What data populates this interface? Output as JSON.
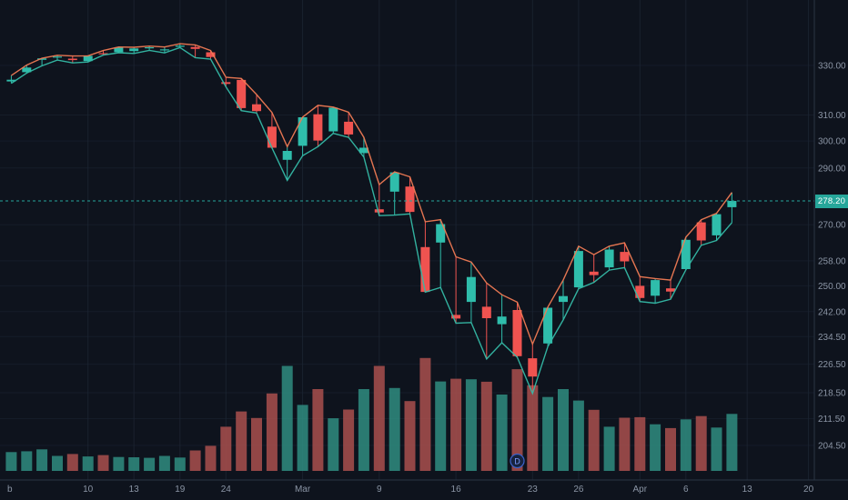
{
  "price_axis": {
    "current_price": "278.20",
    "current_price_color": "#26a69a"
  },
  "chart_data": {
    "type": "candlestick",
    "colors": {
      "up": "#2fbdab",
      "down": "#ef5350",
      "volume_up": "#2f8d80",
      "volume_down": "#a9504e",
      "high_line": "#f07a54",
      "low_line": "#35b9a6",
      "current_price_line": "#26a69a",
      "background": "#0e131d",
      "grid": "#1c2533",
      "axis_text": "#8b95a5"
    },
    "y_axis": {
      "scale": "log",
      "ticks": [
        {
          "label": "330.00",
          "value": 330
        },
        {
          "label": "310.00",
          "value": 310
        },
        {
          "label": "300.00",
          "value": 300
        },
        {
          "label": "290.00",
          "value": 290
        },
        {
          "label": "270.00",
          "value": 270
        },
        {
          "label": "258.00",
          "value": 258
        },
        {
          "label": "250.00",
          "value": 250
        },
        {
          "label": "242.00",
          "value": 242
        },
        {
          "label": "234.50",
          "value": 234.5
        },
        {
          "label": "226.50",
          "value": 226.5
        },
        {
          "label": "218.50",
          "value": 218.5
        },
        {
          "label": "211.50",
          "value": 211.5
        },
        {
          "label": "204.50",
          "value": 204.5
        }
      ]
    },
    "x_axis": {
      "labels": [
        {
          "index": 0,
          "label": "b"
        },
        {
          "index": 5,
          "label": "10"
        },
        {
          "index": 8,
          "label": "13"
        },
        {
          "index": 11,
          "label": "19"
        },
        {
          "index": 14,
          "label": "24"
        },
        {
          "index": 19,
          "label": "Mar"
        },
        {
          "index": 24,
          "label": "9"
        },
        {
          "index": 29,
          "label": "16"
        },
        {
          "index": 34,
          "label": "23"
        },
        {
          "index": 37,
          "label": "26"
        },
        {
          "index": 41,
          "label": "Apr"
        },
        {
          "index": 44,
          "label": "6"
        },
        {
          "index": 48,
          "label": "13"
        },
        {
          "index": 52,
          "label": "20"
        }
      ]
    },
    "current_price": 278.2,
    "markers": [
      {
        "type": "dividend",
        "label": "D",
        "index": 33
      }
    ],
    "overlays": [
      {
        "name": "high-line",
        "source": "high",
        "color": "#f07a54"
      },
      {
        "name": "low-line",
        "source": "low",
        "color": "#35b9a6"
      }
    ],
    "candles": [
      {
        "date": "Feb 3",
        "o": 323.4,
        "h": 325.8,
        "l": 322.6,
        "c": 324.1,
        "v": 69
      },
      {
        "date": "Feb 4",
        "o": 327.2,
        "h": 330.1,
        "l": 326.8,
        "c": 329.1,
        "v": 72
      },
      {
        "date": "Feb 5",
        "o": 332.3,
        "h": 333.0,
        "l": 329.8,
        "c": 332.9,
        "v": 79
      },
      {
        "date": "Feb 6",
        "o": 333.4,
        "h": 334.2,
        "l": 332.2,
        "c": 333.7,
        "v": 55
      },
      {
        "date": "Feb 7",
        "o": 332.8,
        "h": 333.9,
        "l": 331.0,
        "c": 332.2,
        "v": 62
      },
      {
        "date": "Feb 10",
        "o": 331.8,
        "h": 334.0,
        "l": 331.4,
        "c": 334.0,
        "v": 53
      },
      {
        "date": "Feb 11",
        "o": 335.1,
        "h": 336.2,
        "l": 334.3,
        "c": 334.7,
        "v": 58
      },
      {
        "date": "Feb 12",
        "o": 335.5,
        "h": 337.7,
        "l": 335.3,
        "c": 337.4,
        "v": 51
      },
      {
        "date": "Feb 13",
        "o": 336.0,
        "h": 337.6,
        "l": 335.0,
        "c": 337.1,
        "v": 50
      },
      {
        "date": "Feb 14",
        "o": 337.5,
        "h": 338.1,
        "l": 336.3,
        "c": 337.6,
        "v": 48
      },
      {
        "date": "Feb 18",
        "o": 336.6,
        "h": 337.7,
        "l": 335.2,
        "c": 336.7,
        "v": 55
      },
      {
        "date": "Feb 19",
        "o": 337.8,
        "h": 339.1,
        "l": 337.5,
        "c": 338.3,
        "v": 49
      },
      {
        "date": "Feb 20",
        "o": 337.7,
        "h": 338.6,
        "l": 333.2,
        "c": 336.9,
        "v": 75
      },
      {
        "date": "Feb 21",
        "o": 335.5,
        "h": 336.2,
        "l": 332.6,
        "c": 333.5,
        "v": 92
      },
      {
        "date": "Feb 24",
        "o": 323.1,
        "h": 325.1,
        "l": 321.2,
        "c": 322.4,
        "v": 162
      },
      {
        "date": "Feb 25",
        "o": 324.0,
        "h": 324.6,
        "l": 311.7,
        "c": 312.7,
        "v": 218
      },
      {
        "date": "Feb 26",
        "o": 314.2,
        "h": 318.1,
        "l": 310.8,
        "c": 311.5,
        "v": 194
      },
      {
        "date": "Feb 27",
        "o": 305.5,
        "h": 311.0,
        "l": 297.4,
        "c": 297.5,
        "v": 284
      },
      {
        "date": "Feb 28",
        "o": 293.0,
        "h": 297.9,
        "l": 285.5,
        "c": 296.3,
        "v": 385
      },
      {
        "date": "Mar 2",
        "o": 298.2,
        "h": 309.2,
        "l": 294.5,
        "c": 309.1,
        "v": 242
      },
      {
        "date": "Mar 3",
        "o": 310.3,
        "h": 313.8,
        "l": 297.9,
        "c": 300.2,
        "v": 300
      },
      {
        "date": "Mar 4",
        "o": 303.7,
        "h": 313.1,
        "l": 302.9,
        "c": 312.9,
        "v": 193
      },
      {
        "date": "Mar 5",
        "o": 307.4,
        "h": 311.1,
        "l": 301.4,
        "c": 302.5,
        "v": 225
      },
      {
        "date": "Mar 6",
        "o": 295.5,
        "h": 301.4,
        "l": 294.0,
        "c": 297.5,
        "v": 300
      },
      {
        "date": "Mar 9",
        "o": 275.3,
        "h": 284.0,
        "l": 273.1,
        "c": 274.2,
        "v": 385
      },
      {
        "date": "Mar 10",
        "o": 281.5,
        "h": 288.6,
        "l": 273.3,
        "c": 288.4,
        "v": 304
      },
      {
        "date": "Mar 11",
        "o": 283.3,
        "h": 286.8,
        "l": 273.7,
        "c": 274.4,
        "v": 256
      },
      {
        "date": "Mar 12",
        "o": 262.5,
        "h": 271.0,
        "l": 248.0,
        "c": 248.1,
        "v": 414
      },
      {
        "date": "Mar 13",
        "o": 264.0,
        "h": 271.7,
        "l": 249.5,
        "c": 270.2,
        "v": 328
      },
      {
        "date": "Mar 16",
        "o": 241.0,
        "h": 259.3,
        "l": 238.5,
        "c": 239.9,
        "v": 338
      },
      {
        "date": "Mar 17",
        "o": 245.0,
        "h": 257.6,
        "l": 238.7,
        "c": 252.8,
        "v": 336
      },
      {
        "date": "Mar 18",
        "o": 243.5,
        "h": 250.9,
        "l": 228.0,
        "c": 240.0,
        "v": 327
      },
      {
        "date": "Mar 19",
        "o": 238.2,
        "h": 247.2,
        "l": 232.7,
        "c": 240.5,
        "v": 280
      },
      {
        "date": "Mar 20",
        "o": 242.5,
        "h": 244.9,
        "l": 228.5,
        "c": 228.8,
        "v": 373
      },
      {
        "date": "Mar 23",
        "o": 228.2,
        "h": 232.3,
        "l": 218.3,
        "c": 223.0,
        "v": 314
      },
      {
        "date": "Mar 24",
        "o": 232.5,
        "h": 243.4,
        "l": 231.6,
        "c": 243.2,
        "v": 271
      },
      {
        "date": "Mar 25",
        "o": 245.0,
        "h": 251.8,
        "l": 239.5,
        "c": 246.8,
        "v": 300
      },
      {
        "date": "Mar 26",
        "o": 249.5,
        "h": 262.8,
        "l": 249.1,
        "c": 261.2,
        "v": 258
      },
      {
        "date": "Mar 27",
        "o": 254.5,
        "h": 260.0,
        "l": 251.1,
        "c": 253.4,
        "v": 224
      },
      {
        "date": "Mar 30",
        "o": 255.9,
        "h": 262.8,
        "l": 255.0,
        "c": 261.7,
        "v": 162
      },
      {
        "date": "Mar 31",
        "o": 260.9,
        "h": 263.9,
        "l": 255.8,
        "c": 257.8,
        "v": 195
      },
      {
        "date": "Apr 1",
        "o": 250.0,
        "h": 252.9,
        "l": 245.1,
        "c": 246.2,
        "v": 197
      },
      {
        "date": "Apr 2",
        "o": 246.9,
        "h": 252.3,
        "l": 244.6,
        "c": 251.8,
        "v": 171
      },
      {
        "date": "Apr 3",
        "o": 249.2,
        "h": 251.8,
        "l": 245.8,
        "c": 248.2,
        "v": 157
      },
      {
        "date": "Apr 6",
        "o": 255.3,
        "h": 265.8,
        "l": 255.1,
        "c": 264.9,
        "v": 189
      },
      {
        "date": "Apr 7",
        "o": 270.8,
        "h": 271.7,
        "l": 263.1,
        "c": 264.7,
        "v": 201
      },
      {
        "date": "Apr 8",
        "o": 266.4,
        "h": 273.9,
        "l": 264.7,
        "c": 273.6,
        "v": 159
      },
      {
        "date": "Apr 9",
        "o": 276.0,
        "h": 281.2,
        "l": 270.7,
        "c": 278.2,
        "v": 209
      }
    ]
  }
}
